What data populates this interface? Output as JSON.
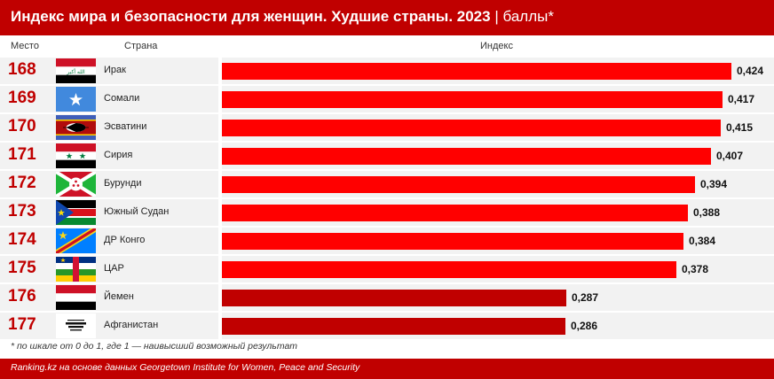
{
  "header": {
    "title": "Индекс мира и безопасности для женщин. Худшие страны. 2023",
    "unit": "| баллы*"
  },
  "columns": {
    "rank": "Место",
    "country": "Страна",
    "index": "Индекс"
  },
  "colors": {
    "brand": "#c00000",
    "bar_top": "#ff0000",
    "bar_bottom": "#c00000"
  },
  "chart_data": {
    "type": "bar",
    "orientation": "horizontal",
    "title": "Индекс мира и безопасности для женщин. Худшие страны. 2023",
    "xlabel": "Индекс",
    "xlim": [
      0,
      0.45
    ],
    "grid": false,
    "rows": [
      {
        "rank": "168",
        "country": "Ирак",
        "flag": "iraq-flag",
        "value": 0.424,
        "label": "0,424"
      },
      {
        "rank": "169",
        "country": "Сомали",
        "flag": "somalia-flag",
        "value": 0.417,
        "label": "0,417"
      },
      {
        "rank": "170",
        "country": "Эсватини",
        "flag": "eswatini-flag",
        "value": 0.415,
        "label": "0,415"
      },
      {
        "rank": "171",
        "country": "Сирия",
        "flag": "syria-flag",
        "value": 0.407,
        "label": "0,407"
      },
      {
        "rank": "172",
        "country": "Бурунди",
        "flag": "burundi-flag",
        "value": 0.394,
        "label": "0,394"
      },
      {
        "rank": "173",
        "country": "Южный Судан",
        "flag": "south-sudan-flag",
        "value": 0.388,
        "label": "0,388"
      },
      {
        "rank": "174",
        "country": "ДР Конго",
        "flag": "dr-congo-flag",
        "value": 0.384,
        "label": "0,384"
      },
      {
        "rank": "175",
        "country": "ЦАР",
        "flag": "car-flag",
        "value": 0.378,
        "label": "0,378"
      },
      {
        "rank": "176",
        "country": "Йемен",
        "flag": "yemen-flag",
        "value": 0.287,
        "label": "0,287"
      },
      {
        "rank": "177",
        "country": "Афганистан",
        "flag": "afghanistan-flag",
        "value": 0.286,
        "label": "0,286"
      }
    ]
  },
  "footnote": "* по шкале от 0 до 1, где 1 — наивысший возможный результат",
  "source": "Ranking.kz на основе данных Georgetown Institute for Women, Peace and Security"
}
